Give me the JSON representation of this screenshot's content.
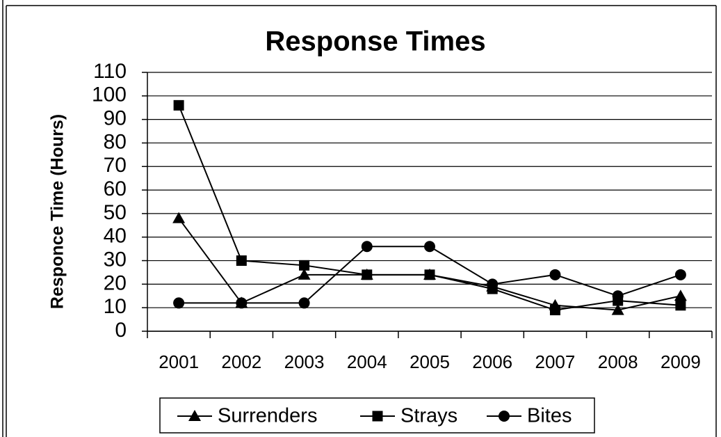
{
  "chart_data": {
    "type": "line",
    "title": "Response Times",
    "y_label": "Responce Time (Hours)",
    "categories": [
      "2001",
      "2002",
      "2003",
      "2004",
      "2005",
      "2006",
      "2007",
      "2008",
      "2009"
    ],
    "series": [
      {
        "name": "Surrenders",
        "color": "#000000",
        "marker": "triangle",
        "values": [
          48,
          12,
          24,
          24,
          24,
          19,
          11,
          9,
          15
        ]
      },
      {
        "name": "Strays",
        "color": "#000000",
        "marker": "square",
        "values": [
          96,
          30,
          28,
          24,
          24,
          18,
          9,
          13,
          11
        ]
      },
      {
        "name": "Bites",
        "color": "#000000",
        "marker": "circle",
        "values": [
          12,
          12,
          12,
          36,
          36,
          20,
          24,
          15,
          24
        ]
      }
    ],
    "ylim": [
      0,
      110
    ],
    "yticks": [
      0,
      10,
      20,
      30,
      40,
      50,
      60,
      70,
      80,
      90,
      100,
      110
    ],
    "grid": true,
    "legend": "bottom"
  }
}
